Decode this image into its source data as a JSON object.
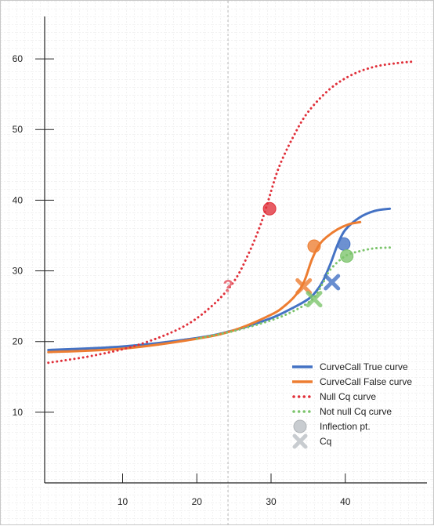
{
  "chart_data": {
    "type": "line",
    "title": "",
    "xlabel": "",
    "ylabel": "",
    "xlim": [
      -0.5,
      51
    ],
    "ylim": [
      0,
      66
    ],
    "x_ticks": [
      "10",
      "20",
      "30",
      "40"
    ],
    "x_tick_values": [
      10,
      20,
      30,
      40
    ],
    "y_ticks": [
      "10",
      "20",
      "30",
      "40",
      "50",
      "60"
    ],
    "y_tick_values": [
      10,
      20,
      30,
      40,
      50,
      60
    ],
    "grid": true,
    "legend_position": "bottom-right",
    "colors": {
      "true_curve": "#4472c4",
      "false_curve": "#ed7d31",
      "null_cq": "#e0303a",
      "not_null_cq": "#7cc46c",
      "legend_marker": "#c8ccd0",
      "vertical_reference": "#b8b8b8"
    },
    "series": [
      {
        "name": "CurveCall True curve",
        "style": "solid",
        "color": "#4472c4",
        "x": [
          0,
          10,
          20,
          25,
          30,
          33,
          35,
          36,
          37,
          38,
          39,
          40,
          42,
          44,
          46
        ],
        "y": [
          18.8,
          19.3,
          20.5,
          21.6,
          23.3,
          24.8,
          26.0,
          27.0,
          28.6,
          31.0,
          33.8,
          35.8,
          37.6,
          38.5,
          38.8
        ]
      },
      {
        "name": "CurveCall False curve",
        "style": "solid",
        "color": "#ed7d31",
        "x": [
          0,
          10,
          20,
          25,
          30,
          32,
          33.5,
          34.5,
          35.5,
          36.5,
          37.5,
          39,
          40.5,
          42
        ],
        "y": [
          18.5,
          19.0,
          20.4,
          21.6,
          23.8,
          25.2,
          26.8,
          28.6,
          31.6,
          33.7,
          34.8,
          35.9,
          36.6,
          36.9
        ]
      },
      {
        "name": "Null Cq curve",
        "style": "dotted",
        "color": "#e0303a",
        "x": [
          0,
          6,
          12,
          18,
          22,
          25,
          27,
          28.5,
          29.5,
          31,
          33,
          35,
          38,
          41,
          44,
          47,
          49
        ],
        "y": [
          17,
          18,
          19.5,
          22,
          25,
          28.5,
          32.5,
          36.3,
          39.5,
          44.5,
          49,
          52.5,
          55.8,
          57.8,
          58.9,
          59.4,
          59.6
        ]
      },
      {
        "name": "Not null Cq curve",
        "style": "dotted",
        "color": "#7cc46c",
        "x": [
          20,
          25,
          30,
          33,
          35,
          36,
          37,
          38,
          40,
          42,
          44,
          46
        ],
        "y": [
          20.4,
          21.5,
          23,
          24.3,
          25.5,
          26.5,
          28.3,
          30.2,
          32.1,
          32.8,
          33.2,
          33.3
        ]
      }
    ],
    "inflection_points": [
      {
        "series": "Null Cq curve",
        "x": 29.8,
        "y": 38.8,
        "color": "#e0303a"
      },
      {
        "series": "CurveCall False curve",
        "x": 35.8,
        "y": 33.5,
        "color": "#ed7d31"
      },
      {
        "series": "CurveCall True curve",
        "x": 39.8,
        "y": 33.8,
        "color": "#4472c4"
      },
      {
        "series": "Not null Cq curve",
        "x": 40.2,
        "y": 32.1,
        "color": "#7cc46c"
      }
    ],
    "cq_points": [
      {
        "series": "CurveCall False curve",
        "x": 34.4,
        "y": 27.8,
        "color": "#ed7d31"
      },
      {
        "series": "Not null Cq curve",
        "x": 35.8,
        "y": 26.0,
        "color": "#7cc46c"
      },
      {
        "series": "CurveCall True curve",
        "x": 38.2,
        "y": 28.4,
        "color": "#4472c4"
      }
    ],
    "annotations": [
      {
        "text": "?",
        "x": 24.2,
        "y": 27.8,
        "color": "#e8707a"
      }
    ],
    "vertical_reference_x": 24.2,
    "legend": [
      {
        "label": "CurveCall True curve",
        "marker": "line-solid",
        "color": "#4472c4"
      },
      {
        "label": "CurveCall False curve",
        "marker": "line-solid",
        "color": "#ed7d31"
      },
      {
        "label": "Null Cq curve",
        "marker": "line-dotted",
        "color": "#e0303a"
      },
      {
        "label": "Not null Cq curve",
        "marker": "line-dotted",
        "color": "#7cc46c"
      },
      {
        "label": "Inflection pt.",
        "marker": "circle",
        "color": "#c8ccd0"
      },
      {
        "label": "Cq",
        "marker": "cross",
        "color": "#c8ccd0"
      }
    ]
  }
}
